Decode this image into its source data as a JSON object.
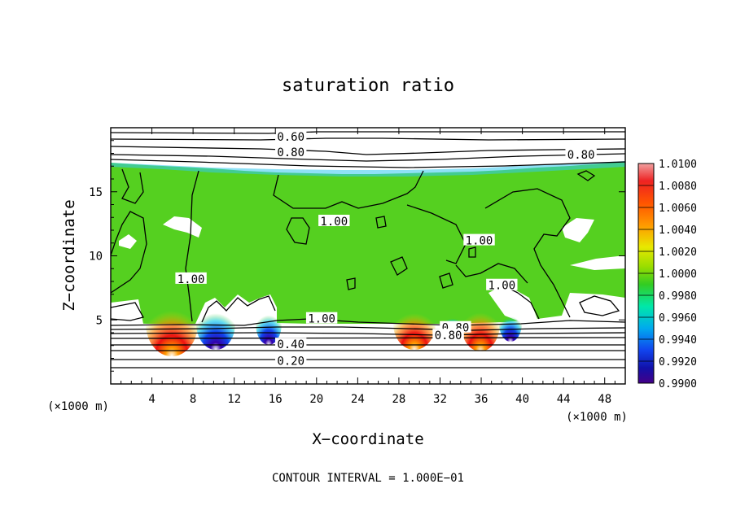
{
  "chart_data": {
    "type": "heatmap",
    "title": "saturation ratio",
    "xlabel": "X−coordinate",
    "ylabel": "Z−coordinate",
    "x_unit": "(×1000 m)",
    "z_unit": "(×1000 m)",
    "x_range": [
      0,
      50
    ],
    "z_range": [
      0,
      20
    ],
    "x_ticks": [
      "4",
      "8",
      "12",
      "16",
      "20",
      "24",
      "28",
      "32",
      "36",
      "40",
      "44",
      "48"
    ],
    "z_ticks": [
      "5",
      "10",
      "15"
    ],
    "x_tick_values": [
      4,
      8,
      12,
      16,
      20,
      24,
      28,
      32,
      36,
      40,
      44,
      48
    ],
    "z_tick_values": [
      5,
      10,
      15
    ],
    "colorbar": {
      "labels": [
        "1.0100",
        "1.0080",
        "1.0060",
        "1.0040",
        "1.0020",
        "1.0000",
        "0.9980",
        "0.9960",
        "0.9940",
        "0.9920",
        "0.9900"
      ],
      "colors": [
        "#f08a8a",
        "#ee2222",
        "#ff5500",
        "#ff9900",
        "#e8e800",
        "#99dd00",
        "#33cc22",
        "#00e8a8",
        "#00aaee",
        "#1144ee",
        "#1111aa",
        "#440088"
      ]
    },
    "contour_labels": [
      {
        "text": "0.60",
        "x": 17.5,
        "z": 19.3
      },
      {
        "text": "0.80",
        "x": 17.5,
        "z": 18.1
      },
      {
        "text": "0.80",
        "x": 45.7,
        "z": 17.9
      },
      {
        "text": "1.00",
        "x": 21.7,
        "z": 12.7
      },
      {
        "text": "1.00",
        "x": 35.8,
        "z": 11.2
      },
      {
        "text": "1.00",
        "x": 7.8,
        "z": 8.2
      },
      {
        "text": "1.00",
        "x": 38.0,
        "z": 7.7
      },
      {
        "text": "1.00",
        "x": 20.5,
        "z": 5.1
      },
      {
        "text": "0.80",
        "x": 33.5,
        "z": 4.4
      },
      {
        "text": "0.80",
        "x": 32.8,
        "z": 3.8
      },
      {
        "text": "0.40",
        "x": 17.5,
        "z": 3.1
      },
      {
        "text": "0.20",
        "x": 17.5,
        "z": 1.8
      }
    ],
    "annotation": "CONTOUR INTERVAL = 1.000E−01"
  }
}
